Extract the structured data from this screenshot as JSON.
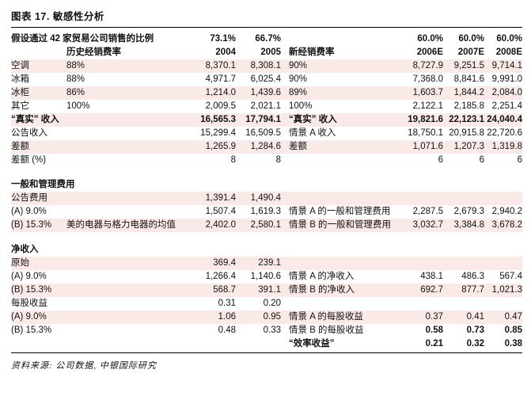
{
  "meta": {
    "title": "图表 17. 敏感性分析",
    "source": "资料来源: 公司数据, 中银国际研究"
  },
  "colors": {
    "stripe": "#faeae7",
    "rule": "#000000",
    "text": "#111111"
  },
  "table": {
    "columns": [
      "label",
      "sub-label",
      "2004",
      "2005",
      "scenario-label",
      "2006E",
      "2007E",
      "2008E"
    ],
    "rows": [
      {
        "type": "header",
        "bold": true,
        "stripe": false,
        "cells": [
          "假设通过 42 家贸易公司销售的比例",
          "",
          "73.1%",
          "66.7%",
          "",
          "60.0%",
          "60.0%",
          "60.0%"
        ]
      },
      {
        "type": "header",
        "bold": true,
        "stripe": false,
        "cells": [
          "",
          "历史经销费率",
          "2004",
          "2005",
          "新经销费率",
          "2006E",
          "2007E",
          "2008E"
        ]
      },
      {
        "type": "data",
        "stripe": true,
        "cells": [
          "空调",
          "88%",
          "8,370.1",
          "8,308.1",
          "90%",
          "8,727.9",
          "9,251.5",
          "9,714.1"
        ]
      },
      {
        "type": "data",
        "stripe": false,
        "cells": [
          "冰箱",
          "88%",
          "4,971.7",
          "6,025.4",
          "90%",
          "7,368.0",
          "8,841.6",
          "9,991.0"
        ]
      },
      {
        "type": "data",
        "stripe": true,
        "cells": [
          "冰柜",
          "86%",
          "1,214.0",
          "1,439.6",
          "89%",
          "1,603.7",
          "1,844.2",
          "2,084.0"
        ]
      },
      {
        "type": "data",
        "stripe": false,
        "cells": [
          "其它",
          "100%",
          "2,009.5",
          "2,021.1",
          "100%",
          "2,122.1",
          "2,185.8",
          "2,251.4"
        ]
      },
      {
        "type": "data",
        "stripe": true,
        "bold": true,
        "cells": [
          "“真实” 收入",
          "",
          "16,565.3",
          "17,794.1",
          "“真实” 收入",
          "19,821.6",
          "22,123.1",
          "24,040.4"
        ]
      },
      {
        "type": "data",
        "stripe": false,
        "cells": [
          "公告收入",
          "",
          "15,299.4",
          "16,509.5",
          "情景 A 收入",
          "18,750.1",
          "20,915.8",
          "22,720.6"
        ]
      },
      {
        "type": "data",
        "stripe": true,
        "cells": [
          "差额",
          "",
          "1,265.9",
          "1,284.6",
          "差额",
          "1,071.6",
          "1,207.3",
          "1,319.8"
        ]
      },
      {
        "type": "data",
        "stripe": false,
        "cells": [
          "差额 (%)",
          "",
          "8",
          "8",
          "",
          "6",
          "6",
          "6"
        ]
      },
      {
        "type": "gap"
      },
      {
        "type": "section",
        "bold": true,
        "stripe": false,
        "cells": [
          "一般和管理费用",
          "",
          "",
          "",
          "",
          "",
          "",
          ""
        ]
      },
      {
        "type": "data",
        "stripe": true,
        "cells": [
          "公告费用",
          "",
          "1,391.4",
          "1,490.4",
          "",
          "",
          "",
          ""
        ]
      },
      {
        "type": "data",
        "stripe": false,
        "cells": [
          "(A) 9.0%",
          "",
          "1,507.4",
          "1,619.3",
          "情景 A 的一般和管理费用",
          "2,287.5",
          "2,679.3",
          "2,940.2"
        ]
      },
      {
        "type": "data",
        "stripe": true,
        "cells": [
          "(B) 15.3%",
          "美的电器与格力电器的均值",
          "2,402.0",
          "2,580.1",
          "情景 B 的一般和管理费用",
          "3,032.7",
          "3,384.8",
          "3,678.2"
        ]
      },
      {
        "type": "gap"
      },
      {
        "type": "section",
        "bold": true,
        "stripe": false,
        "cells": [
          "净收入",
          "",
          "",
          "",
          "",
          "",
          "",
          ""
        ]
      },
      {
        "type": "data",
        "stripe": true,
        "cells": [
          "原始",
          "",
          "369.4",
          "239.1",
          "",
          "",
          "",
          ""
        ]
      },
      {
        "type": "data",
        "stripe": false,
        "cells": [
          "(A) 9.0%",
          "",
          "1,266.4",
          "1,140.6",
          "情景 A 的净收入",
          "438.1",
          "486.3",
          "567.4"
        ]
      },
      {
        "type": "data",
        "stripe": true,
        "cells": [
          "(B) 15.3%",
          "",
          "568.7",
          "391.1",
          "情景 B 的净收入",
          "692.7",
          "877.7",
          "1,021.3"
        ]
      },
      {
        "type": "data",
        "stripe": false,
        "cells": [
          "每股收益",
          "",
          "0.31",
          "0.20",
          "",
          "",
          "",
          ""
        ]
      },
      {
        "type": "data",
        "stripe": true,
        "cells": [
          "(A) 9.0%",
          "",
          "1.06",
          "0.95",
          "情景 A 的每股收益",
          "0.37",
          "0.41",
          "0.47"
        ]
      },
      {
        "type": "data",
        "stripe": false,
        "bold_cells": [
          5,
          6,
          7
        ],
        "cells": [
          "(B) 15.3%",
          "",
          "0.48",
          "0.33",
          "情景 B 的每股收益",
          "0.58",
          "0.73",
          "0.85"
        ]
      },
      {
        "type": "data",
        "stripe": false,
        "bold_cells": [
          4,
          5,
          6,
          7
        ],
        "cells": [
          "",
          "",
          "",
          "",
          "“效率收益”",
          "0.21",
          "0.32",
          "0.38"
        ]
      }
    ]
  }
}
